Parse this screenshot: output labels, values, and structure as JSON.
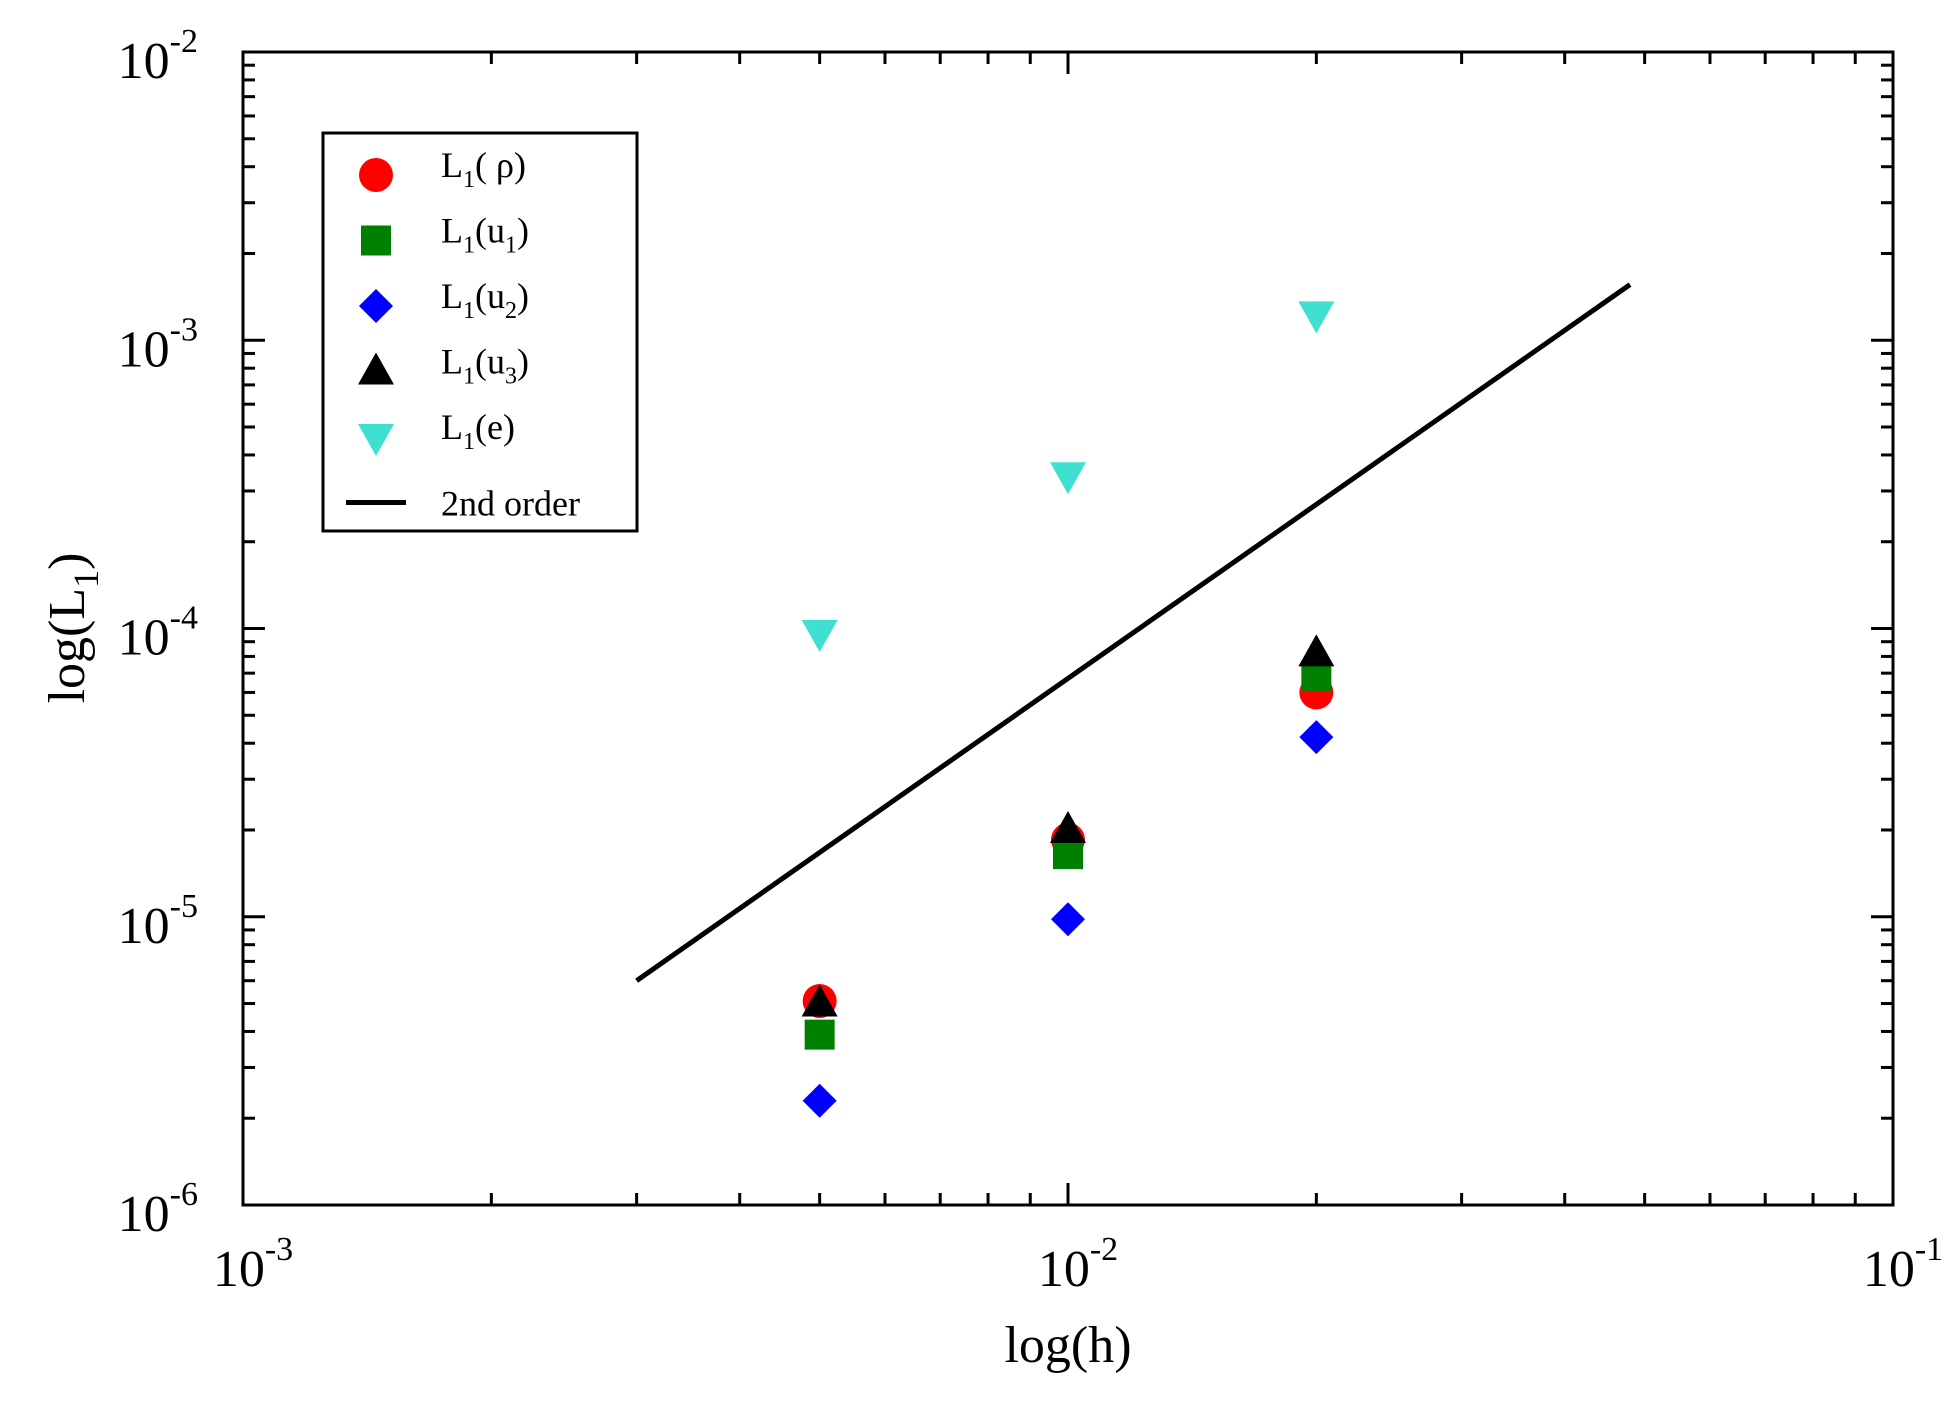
{
  "chart_data": {
    "type": "scatter",
    "xscale": "log",
    "yscale": "log",
    "xlim": [
      0.001,
      0.1
    ],
    "ylim": [
      1e-06,
      0.01
    ],
    "xlabel": "log(h)",
    "ylabel_main": "log(L",
    "ylabel_sub": "1",
    "ylabel_close": ")",
    "xticks": [
      {
        "base": "10",
        "exp": "-3"
      },
      {
        "base": "10",
        "exp": "-2"
      },
      {
        "base": "10",
        "exp": "-1"
      }
    ],
    "yticks": [
      {
        "base": "10",
        "exp": "-6"
      },
      {
        "base": "10",
        "exp": "-5"
      },
      {
        "base": "10",
        "exp": "-4"
      },
      {
        "base": "10",
        "exp": "-3"
      },
      {
        "base": "10",
        "exp": "-2"
      }
    ],
    "legend_position": "top-left",
    "series": [
      {
        "name": "L1(rho)",
        "label_main": "L",
        "label_sub": "1",
        "label_rest": "( ρ)",
        "label_sub2": "",
        "label_close": "",
        "marker": "circle",
        "color": "#ff0000",
        "x": [
          0.005,
          0.01,
          0.02
        ],
        "y": [
          5.1e-06,
          1.85e-05,
          6e-05
        ]
      },
      {
        "name": "L1(u1)",
        "label_main": "L",
        "label_sub": "1",
        "label_rest": "(u",
        "label_sub2": "1",
        "label_close": ")",
        "marker": "square",
        "color": "#008000",
        "x": [
          0.005,
          0.01,
          0.02
        ],
        "y": [
          3.9e-06,
          1.65e-05,
          6.85e-05
        ]
      },
      {
        "name": "L1(u2)",
        "label_main": "L",
        "label_sub": "1",
        "label_rest": "(u",
        "label_sub2": "2",
        "label_close": ")",
        "marker": "diamond",
        "color": "#0000ff",
        "x": [
          0.005,
          0.01,
          0.02
        ],
        "y": [
          2.3e-06,
          9.8e-06,
          4.2e-05
        ]
      },
      {
        "name": "L1(u3)",
        "label_main": "L",
        "label_sub": "1",
        "label_rest": "(u",
        "label_sub2": "3",
        "label_close": ")",
        "marker": "triangle-up",
        "color": "#000000",
        "x": [
          0.005,
          0.01,
          0.02
        ],
        "y": [
          5e-06,
          2e-05,
          8.2e-05
        ]
      },
      {
        "name": "L1(e)",
        "label_main": "L",
        "label_sub": "1",
        "label_rest": "(e)",
        "label_sub2": "",
        "label_close": "",
        "marker": "triangle-down",
        "color": "#40e0d0",
        "x": [
          0.005,
          0.01,
          0.02
        ],
        "y": [
          9.65e-05,
          0.00034,
          0.00123
        ]
      }
    ],
    "reference_line": {
      "name": "2nd order",
      "color": "#000000",
      "x": [
        0.003,
        0.048
      ],
      "y": [
        6e-06,
        0.00156
      ]
    }
  }
}
